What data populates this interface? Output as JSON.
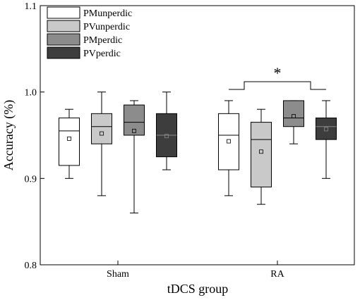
{
  "chart_data": {
    "type": "box",
    "xlabel": "tDCS group",
    "ylabel": "Accuracy (%)",
    "ylim": [
      0.8,
      1.1
    ],
    "yticks": [
      "0.8",
      "0.9",
      "1.0",
      "1.1"
    ],
    "categories": [
      "Sham",
      "RA"
    ],
    "legend_position": "top-left",
    "series": [
      {
        "name": "PMunperdic",
        "color": "#ffffff"
      },
      {
        "name": "PVunperdic",
        "color": "#c9c9c9"
      },
      {
        "name": "PMperdic",
        "color": "#8c8c8c"
      },
      {
        "name": "PVperdic",
        "color": "#3d3d3d"
      }
    ],
    "groups": [
      {
        "category": "Sham",
        "boxes": [
          {
            "series": "PMunperdic",
            "min": 0.9,
            "q1": 0.915,
            "median": 0.955,
            "q3": 0.97,
            "max": 0.98,
            "mean": 0.946
          },
          {
            "series": "PVunperdic",
            "min": 0.88,
            "q1": 0.94,
            "median": 0.96,
            "q3": 0.975,
            "max": 1.0,
            "mean": 0.952
          },
          {
            "series": "PMperdic",
            "min": 0.86,
            "q1": 0.95,
            "median": 0.965,
            "q3": 0.985,
            "max": 0.99,
            "mean": 0.955
          },
          {
            "series": "PVperdic",
            "min": 0.91,
            "q1": 0.925,
            "median": 0.95,
            "q3": 0.975,
            "max": 1.0,
            "mean": 0.949
          }
        ]
      },
      {
        "category": "RA",
        "boxes": [
          {
            "series": "PMunperdic",
            "min": 0.88,
            "q1": 0.91,
            "median": 0.95,
            "q3": 0.975,
            "max": 0.99,
            "mean": 0.943
          },
          {
            "series": "PVunperdic",
            "min": 0.87,
            "q1": 0.89,
            "median": 0.945,
            "q3": 0.965,
            "max": 0.98,
            "mean": 0.931
          },
          {
            "series": "PMperdic",
            "min": 0.94,
            "q1": 0.96,
            "median": 0.97,
            "q3": 0.99,
            "max": 0.99,
            "mean": 0.972
          },
          {
            "series": "PVperdic",
            "min": 0.9,
            "q1": 0.945,
            "median": 0.96,
            "q3": 0.97,
            "max": 0.99,
            "mean": 0.957
          }
        ]
      }
    ],
    "annotation": {
      "text": "*",
      "group": "RA"
    }
  }
}
